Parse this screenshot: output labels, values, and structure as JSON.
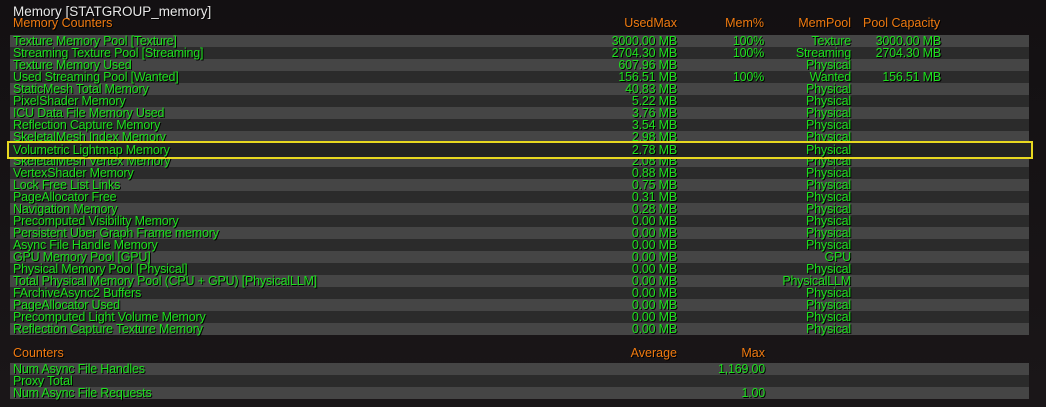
{
  "title": "Memory [STATGROUP_memory]",
  "memory_section": {
    "headers": {
      "name": "Memory Counters",
      "usedmax": "UsedMax",
      "mempct": "Mem%",
      "mempool": "MemPool",
      "capacity": "Pool Capacity"
    },
    "highlighted_row": "Volumetric Lightmap Memory",
    "rows": [
      {
        "name": "Texture Memory Pool [Texture]",
        "usedmax": "3000.00 MB",
        "mempct": "100%",
        "mempool": "Texture",
        "capacity": "3000.00 MB"
      },
      {
        "name": "Streaming Texture Pool [Streaming]",
        "usedmax": "2704.30 MB",
        "mempct": "100%",
        "mempool": "Streaming",
        "capacity": "2704.30 MB"
      },
      {
        "name": "Texture Memory Used",
        "usedmax": "607.96 MB",
        "mempct": "",
        "mempool": "Physical",
        "capacity": ""
      },
      {
        "name": "Used Streaming Pool [Wanted]",
        "usedmax": "156.51 MB",
        "mempct": "100%",
        "mempool": "Wanted",
        "capacity": "156.51 MB"
      },
      {
        "name": "StaticMesh Total Memory",
        "usedmax": "40.83 MB",
        "mempct": "",
        "mempool": "Physical",
        "capacity": ""
      },
      {
        "name": "PixelShader Memory",
        "usedmax": "5.22 MB",
        "mempct": "",
        "mempool": "Physical",
        "capacity": ""
      },
      {
        "name": "ICU Data File Memory Used",
        "usedmax": "3.76 MB",
        "mempct": "",
        "mempool": "Physical",
        "capacity": ""
      },
      {
        "name": "Reflection Capture Memory",
        "usedmax": "3.54 MB",
        "mempct": "",
        "mempool": "Physical",
        "capacity": ""
      },
      {
        "name": "SkeletalMesh Index Memory",
        "usedmax": "2.98 MB",
        "mempct": "",
        "mempool": "Physical",
        "capacity": ""
      },
      {
        "name": "Volumetric Lightmap Memory",
        "usedmax": "2.78 MB",
        "mempct": "",
        "mempool": "Physical",
        "capacity": ""
      },
      {
        "name": "SkeletalMesh Vertex Memory",
        "usedmax": "2.08 MB",
        "mempct": "",
        "mempool": "Physical",
        "capacity": ""
      },
      {
        "name": "VertexShader Memory",
        "usedmax": "0.88 MB",
        "mempct": "",
        "mempool": "Physical",
        "capacity": ""
      },
      {
        "name": "Lock Free List Links",
        "usedmax": "0.75 MB",
        "mempct": "",
        "mempool": "Physical",
        "capacity": ""
      },
      {
        "name": "PageAllocator Free",
        "usedmax": "0.31 MB",
        "mempct": "",
        "mempool": "Physical",
        "capacity": ""
      },
      {
        "name": "Navigation Memory",
        "usedmax": "0.28 MB",
        "mempct": "",
        "mempool": "Physical",
        "capacity": ""
      },
      {
        "name": "Precomputed Visibility Memory",
        "usedmax": "0.00 MB",
        "mempct": "",
        "mempool": "Physical",
        "capacity": ""
      },
      {
        "name": "Persistent Uber Graph Frame memory",
        "usedmax": "0.00 MB",
        "mempct": "",
        "mempool": "Physical",
        "capacity": ""
      },
      {
        "name": "Async File Handle Memory",
        "usedmax": "0.00 MB",
        "mempct": "",
        "mempool": "Physical",
        "capacity": ""
      },
      {
        "name": "GPU Memory Pool [GPU]",
        "usedmax": "0.00 MB",
        "mempct": "",
        "mempool": "GPU",
        "capacity": ""
      },
      {
        "name": "Physical Memory Pool [Physical]",
        "usedmax": "0.00 MB",
        "mempct": "",
        "mempool": "Physical",
        "capacity": ""
      },
      {
        "name": "Total Physical Memory Pool (CPU + GPU) [PhysicalLLM]",
        "usedmax": "0.00 MB",
        "mempct": "",
        "mempool": "PhysicalLLM",
        "capacity": ""
      },
      {
        "name": "FArchiveAsync2 Buffers",
        "usedmax": "0.00 MB",
        "mempct": "",
        "mempool": "Physical",
        "capacity": ""
      },
      {
        "name": "PageAllocator Used",
        "usedmax": "0.00 MB",
        "mempct": "",
        "mempool": "Physical",
        "capacity": ""
      },
      {
        "name": "Precomputed Light Volume Memory",
        "usedmax": "0.00 MB",
        "mempct": "",
        "mempool": "Physical",
        "capacity": ""
      },
      {
        "name": "Reflection Capture Texture Memory",
        "usedmax": "0.00 MB",
        "mempct": "",
        "mempool": "Physical",
        "capacity": ""
      }
    ]
  },
  "counters_section": {
    "headers": {
      "name": "Counters",
      "average": "Average",
      "max": "Max"
    },
    "rows": [
      {
        "name": "Num Async File Handles",
        "average": "",
        "max": "1,169.00"
      },
      {
        "name": "Proxy Total",
        "average": "",
        "max": ""
      },
      {
        "name": "Num Async File Requests",
        "average": "",
        "max": "1.00"
      }
    ]
  },
  "colors": {
    "header": "#f07a10",
    "value": "#1ee01e",
    "highlight": "#e8d820"
  }
}
